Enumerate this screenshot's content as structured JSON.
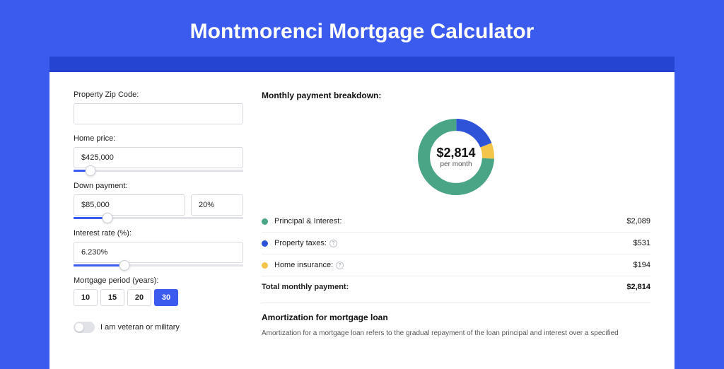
{
  "page": {
    "title": "Montmorenci Mortgage Calculator",
    "background_color": "#3b5bef",
    "header_strip_color": "#2444d1",
    "card_background": "#ffffff"
  },
  "form": {
    "zip": {
      "label": "Property Zip Code:",
      "value": ""
    },
    "home_price": {
      "label": "Home price:",
      "value": "$425,000",
      "slider_pct": 10
    },
    "down_payment": {
      "label": "Down payment:",
      "value": "$85,000",
      "percent": "20%",
      "slider_pct": 20
    },
    "interest_rate": {
      "label": "Interest rate (%):",
      "value": "6.230%",
      "slider_pct": 30
    },
    "period": {
      "label": "Mortgage period (years):",
      "options": [
        "10",
        "15",
        "20",
        "30"
      ],
      "selected": "30"
    },
    "veteran": {
      "label": "I am veteran or military",
      "checked": false
    }
  },
  "breakdown": {
    "title": "Monthly payment breakdown:",
    "center_amount": "$2,814",
    "center_sub": "per month",
    "slices": [
      {
        "name": "Principal & Interest:",
        "value": "$2,089",
        "color": "#4aa586",
        "pct": 74.2
      },
      {
        "name": "Property taxes:",
        "value": "$531",
        "color": "#2f53d8",
        "pct": 18.9,
        "info": true
      },
      {
        "name": "Home insurance:",
        "value": "$194",
        "color": "#f3c64b",
        "pct": 6.9,
        "info": true
      }
    ],
    "total": {
      "name": "Total monthly payment:",
      "value": "$2,814"
    },
    "donut": {
      "stroke_width": 16,
      "bg": "#ffffff"
    }
  },
  "amortization": {
    "title": "Amortization for mortgage loan",
    "text": "Amortization for a mortgage loan refers to the gradual repayment of the loan principal and interest over a specified"
  }
}
